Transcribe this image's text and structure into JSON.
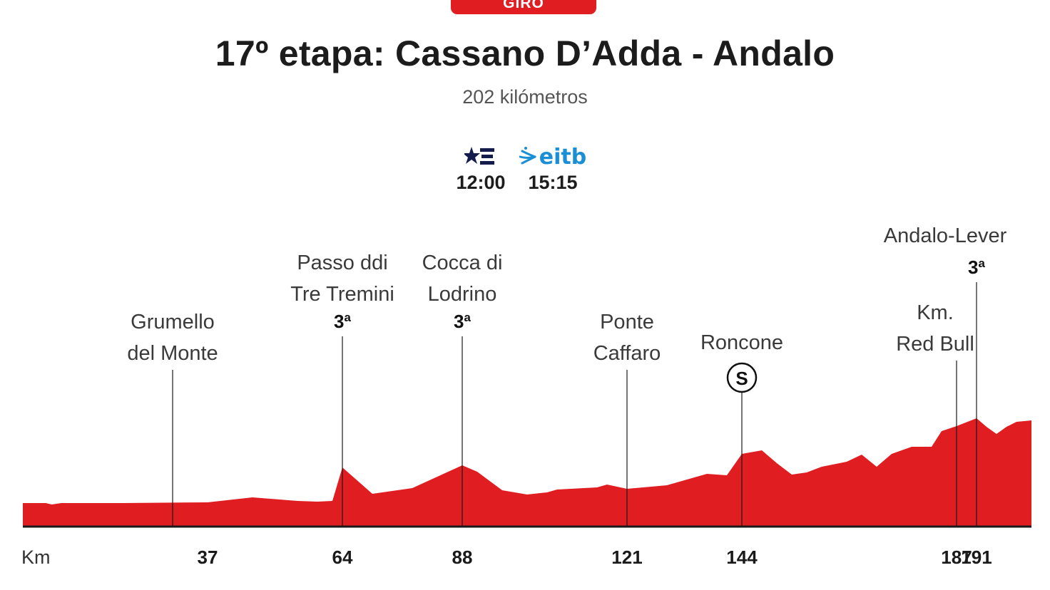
{
  "header": {
    "badge": "GIRO",
    "title": "17º etapa: Cassano D’Adda - Andalo",
    "subtitle": "202 kilómetros"
  },
  "broadcast": [
    {
      "logo": "eurosport-icon",
      "time": "12:00"
    },
    {
      "logo": "eitb-icon",
      "logo_text": "eitb",
      "time": "15:15"
    }
  ],
  "colors": {
    "profile": "#e01e22",
    "accent": "#e01e22",
    "eitb": "#1a8fd6"
  },
  "chart_data": {
    "type": "area",
    "xlabel": "Km",
    "xlim": [
      0,
      202
    ],
    "profile": [
      [
        0,
        0.33
      ],
      [
        4.6,
        0.33
      ],
      [
        5.8,
        0.31
      ],
      [
        7.7,
        0.33
      ],
      [
        20,
        0.33
      ],
      [
        37,
        0.34
      ],
      [
        46,
        0.41
      ],
      [
        55,
        0.36
      ],
      [
        59,
        0.35
      ],
      [
        62,
        0.36
      ],
      [
        64,
        0.83
      ],
      [
        70,
        0.46
      ],
      [
        78,
        0.54
      ],
      [
        88,
        0.86
      ],
      [
        91,
        0.77
      ],
      [
        96,
        0.51
      ],
      [
        101,
        0.45
      ],
      [
        105,
        0.48
      ],
      [
        107,
        0.52
      ],
      [
        115,
        0.55
      ],
      [
        117,
        0.59
      ],
      [
        121,
        0.53
      ],
      [
        129,
        0.58
      ],
      [
        137,
        0.74
      ],
      [
        141,
        0.72
      ],
      [
        144,
        1.02
      ],
      [
        148,
        1.07
      ],
      [
        151,
        0.89
      ],
      [
        154,
        0.73
      ],
      [
        157,
        0.76
      ],
      [
        160,
        0.84
      ],
      [
        165,
        0.91
      ],
      [
        168,
        1.01
      ],
      [
        171,
        0.84
      ],
      [
        174,
        1.02
      ],
      [
        178,
        1.12
      ],
      [
        181,
        1.12
      ],
      [
        182,
        1.12
      ],
      [
        184,
        1.34
      ],
      [
        187,
        1.41
      ],
      [
        191,
        1.52
      ],
      [
        193,
        1.4
      ],
      [
        195,
        1.3
      ],
      [
        197,
        1.4
      ],
      [
        199,
        1.47
      ],
      [
        202,
        1.49
      ]
    ],
    "ylim": [
      0,
      2.2
    ],
    "ticks": [
      {
        "km": 37,
        "label": "37"
      },
      {
        "km": 64,
        "label": "64"
      },
      {
        "km": 88,
        "label": "88"
      },
      {
        "km": 121,
        "label": "121"
      },
      {
        "km": 144,
        "label": "144"
      },
      {
        "km": 187,
        "label": "187"
      },
      {
        "km": 191,
        "label": "191"
      }
    ],
    "waypoints": [
      {
        "km": 30,
        "lines": [
          "Grumello",
          "del Monte"
        ],
        "category": "",
        "sprint": false
      },
      {
        "km": 64,
        "lines": [
          "Passo ddi",
          "Tre Tremini"
        ],
        "category": "3ª",
        "sprint": false
      },
      {
        "km": 88,
        "lines": [
          "Cocca di",
          "Lodrino"
        ],
        "category": "3ª",
        "sprint": false
      },
      {
        "km": 121,
        "lines": [
          "Ponte",
          "Caffaro"
        ],
        "category": "",
        "sprint": false
      },
      {
        "km": 144,
        "lines": [
          "Roncone"
        ],
        "category": "",
        "sprint": true,
        "sprint_label": "S"
      },
      {
        "km": 187,
        "lines": [
          "Km.",
          "Red Bull"
        ],
        "category": "",
        "sprint": false
      },
      {
        "km": 191,
        "lines": [
          "Andalo-Lever"
        ],
        "category": "3ª",
        "sprint": false
      }
    ]
  }
}
